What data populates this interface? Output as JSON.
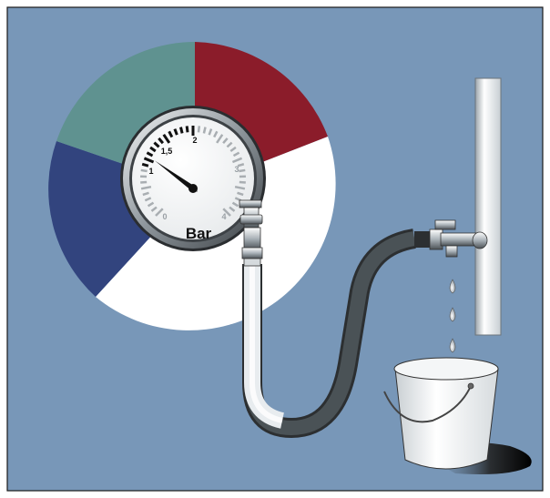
{
  "gauge": {
    "unit_label": "Bar",
    "tick_labels": [
      "0",
      "1",
      "1,5",
      "2",
      "3",
      "4"
    ],
    "needle_value": 1.2,
    "scale_min": 0,
    "scale_max": 4
  },
  "colors": {
    "background_panel": "#7897b8",
    "pie_red": "#8b1c2a",
    "pie_teal": "#5f9290",
    "pie_navy": "#32447e",
    "pie_white": "#ffffff",
    "hose": "#e8ecef",
    "hose_dark": "#2c2f31"
  },
  "pie": {
    "segments": [
      {
        "name": "red",
        "color_key": "pie_red"
      },
      {
        "name": "white",
        "color_key": "pie_white"
      },
      {
        "name": "navy",
        "color_key": "pie_navy"
      },
      {
        "name": "teal",
        "color_key": "pie_teal"
      }
    ]
  }
}
